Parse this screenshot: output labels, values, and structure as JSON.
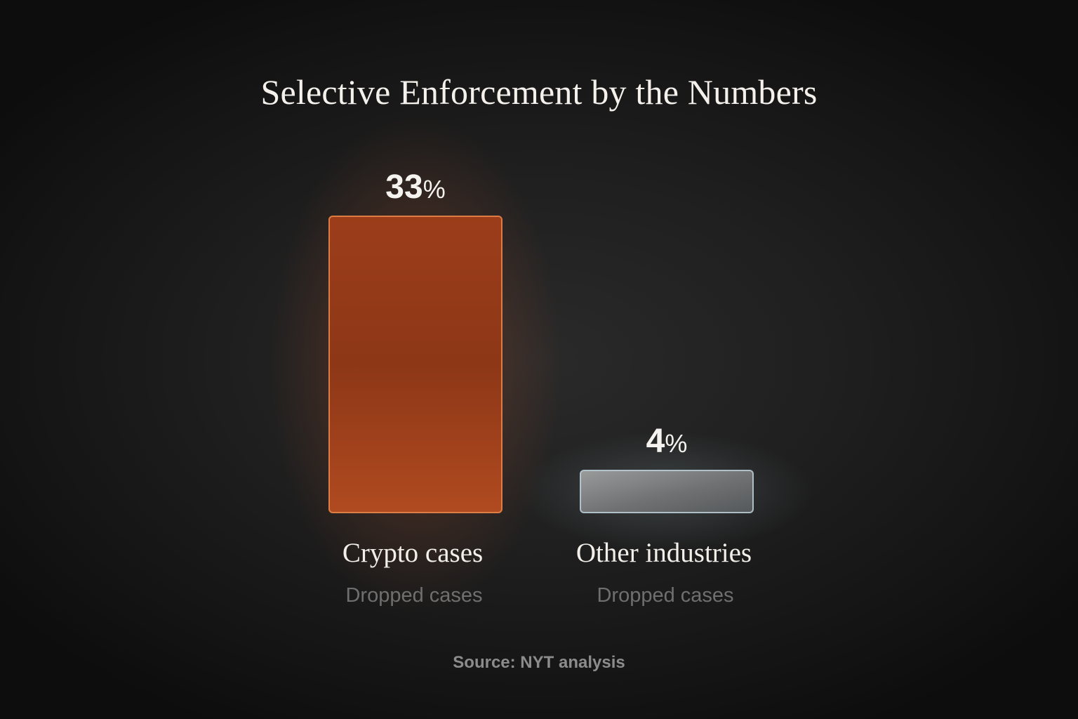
{
  "source": "Source: NYT analysis",
  "colors": {
    "crypto_bar": "#a8461f",
    "crypto_edge": "#f08a4c",
    "other_bar": "#8a8c8c",
    "other_edge": "#bfd2dc",
    "background": "#1a1a1a"
  },
  "chart_data": {
    "type": "bar",
    "title": "Selective Enforcement by the Numbers",
    "categories": [
      "Crypto cases",
      "Other industries"
    ],
    "sublabels": [
      "Dropped cases",
      "Dropped cases"
    ],
    "values": [
      33,
      4
    ],
    "value_labels": [
      "33%",
      "4%"
    ],
    "unit": "%",
    "ylim": [
      0,
      33
    ],
    "grid": false,
    "legend": "none"
  }
}
